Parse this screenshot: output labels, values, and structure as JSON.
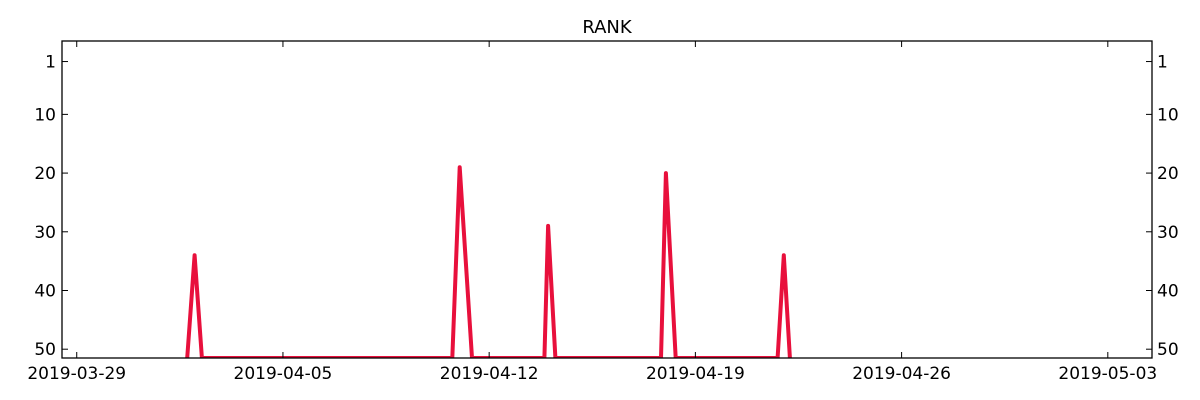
{
  "chart_data": {
    "type": "line",
    "title": "RANK",
    "xlabel": "",
    "ylabel": "",
    "x_ticks": [
      "2019-03-29",
      "2019-04-05",
      "2019-04-12",
      "2019-04-19",
      "2019-04-26",
      "2019-05-03"
    ],
    "x_range": [
      "2019-03-28T12:00",
      "2019-05-04T12:00"
    ],
    "y_ticks": [
      1,
      10,
      20,
      30,
      40,
      50
    ],
    "y_range": [
      51.5,
      -2.5
    ],
    "y_inverted": true,
    "y_axis_both_sides": true,
    "grid": false,
    "legend": "none",
    "series": [
      {
        "color": "#e8103c",
        "points": [
          {
            "x": "2019-04-01T18:00",
            "y": 51.5
          },
          {
            "x": "2019-04-02",
            "y": 34
          },
          {
            "x": "2019-04-02T06:00",
            "y": 51.5
          },
          {
            "x": "2019-04-10T18:00",
            "y": 51.5
          },
          {
            "x": "2019-04-11",
            "y": 19
          },
          {
            "x": "2019-04-11T10:00",
            "y": 51.5
          },
          {
            "x": "2019-04-13T21:00",
            "y": 51.5
          },
          {
            "x": "2019-04-14",
            "y": 29
          },
          {
            "x": "2019-04-14T06:00",
            "y": 51.5
          },
          {
            "x": "2019-04-17T20:00",
            "y": 51.5
          },
          {
            "x": "2019-04-18",
            "y": 20
          },
          {
            "x": "2019-04-18T08:00",
            "y": 51.5
          },
          {
            "x": "2019-04-21T19:00",
            "y": 51.5
          },
          {
            "x": "2019-04-22",
            "y": 34
          },
          {
            "x": "2019-04-22T05:00",
            "y": 51.5
          }
        ]
      }
    ]
  }
}
